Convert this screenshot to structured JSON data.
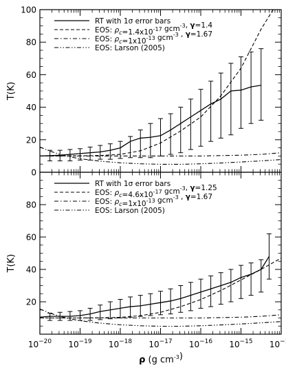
{
  "chart_data": [
    {
      "type": "line",
      "xscale": "log",
      "xlim": [
        1e-20,
        1e-14
      ],
      "ylim": [
        0,
        100
      ],
      "yticks": [
        0,
        20,
        40,
        60,
        80,
        100
      ],
      "ylabel": "T(K)",
      "legend_position": "top-left",
      "legend": [
        {
          "text": "RT with 1σ error bars",
          "style": "solid"
        },
        {
          "text": "EOS: ρc=1.4x10⁻¹⁷ gcm⁻³, γ=1.4",
          "style": "dashed"
        },
        {
          "text": "EOS: ρc=1x10⁻¹³ gcm⁻³ , γ=1.67",
          "style": "dashdot"
        },
        {
          "text": "EOS: Larson (2005)",
          "style": "dashdotdot"
        }
      ],
      "series": [
        {
          "name": "RT with 1σ error bars",
          "style": "solid",
          "log10_rho": [
            -20.0,
            -19.75,
            -19.5,
            -19.25,
            -19.0,
            -18.75,
            -18.5,
            -18.25,
            -18.0,
            -17.75,
            -17.5,
            -17.25,
            -17.0,
            -16.75,
            -16.5,
            -16.25,
            -16.0,
            -15.75,
            -15.5,
            -15.25,
            -15.0,
            -14.75,
            -14.5
          ],
          "T": [
            10,
            10.2,
            10.5,
            11,
            11.5,
            12,
            12.5,
            13.5,
            15,
            19,
            21,
            21.5,
            22.5,
            26,
            30,
            34,
            38,
            42,
            45,
            50,
            50.5,
            52.5,
            53.5
          ],
          "err_log10_rho": [
            -19.75,
            -19.5,
            -19.25,
            -19.0,
            -18.75,
            -18.5,
            -18.25,
            -18.0,
            -17.75,
            -17.5,
            -17.25,
            -17.0,
            -16.75,
            -16.5,
            -16.25,
            -16.0,
            -15.75,
            -15.5,
            -15.25,
            -15.0,
            -14.75,
            -14.5
          ],
          "err_lo": [
            7,
            7,
            7,
            7.5,
            7.5,
            8,
            8,
            8.5,
            9,
            9,
            9,
            10,
            11,
            12,
            14,
            16,
            19,
            21,
            23,
            27,
            30,
            32
          ],
          "err_hi": [
            13.5,
            13.5,
            14,
            14.5,
            15.5,
            16.5,
            17.5,
            19,
            22,
            26,
            30,
            33,
            36,
            40,
            45,
            51,
            56,
            61,
            67,
            71,
            74,
            76
          ]
        },
        {
          "name": "EOS: ρc=1.4x10⁻¹⁷ gcm⁻³, γ=1.4",
          "style": "dashed",
          "model": {
            "T0": 10,
            "rho_c": 1.4e-17,
            "gamma": 1.4
          },
          "log10_rho": [
            -20.0,
            -19.0,
            -18.5,
            -18.0,
            -17.5,
            -17.0,
            -16.5,
            -16.0,
            -15.5,
            -15.0,
            -14.5,
            -14.1
          ],
          "T": [
            10.0,
            10.1,
            10.3,
            11.0,
            13.2,
            18.0,
            25.4,
            34.0,
            47.0,
            64.0,
            88.0,
            104.0
          ]
        },
        {
          "name": "EOS: ρc=1x10⁻¹³ gcm⁻³ , γ=1.67",
          "style": "dashdot",
          "log10_rho": [
            -20.0,
            -19.0,
            -18.0,
            -17.0,
            -16.0,
            -15.0,
            -14.5,
            -14.0
          ],
          "T": [
            10.0,
            10.0,
            10.0,
            10.0,
            10.0,
            10.5,
            11.0,
            12.0
          ]
        },
        {
          "name": "EOS: Larson (2005)",
          "style": "dashdotdot",
          "log10_rho": [
            -20.0,
            -19.75,
            -19.5,
            -19.25,
            -19.0,
            -18.5,
            -18.0,
            -17.5,
            -17.0,
            -16.5,
            -16.0,
            -15.5,
            -15.0,
            -14.5,
            -14.0
          ],
          "T": [
            15.5,
            13.0,
            11.0,
            9.5,
            8.3,
            6.8,
            5.8,
            5.2,
            4.9,
            4.9,
            5.2,
            5.7,
            6.3,
            7.0,
            7.8
          ]
        }
      ]
    },
    {
      "type": "line",
      "xscale": "log",
      "xlim": [
        1e-20,
        1e-14
      ],
      "ylim": [
        0,
        100
      ],
      "xticks": [
        "10⁻²⁰",
        "10⁻¹⁹",
        "10⁻¹⁸",
        "10⁻¹⁷",
        "10⁻¹⁶",
        "10⁻¹⁵",
        "10⁻¹⁴"
      ],
      "yticks": [
        20,
        40,
        60,
        80
      ],
      "xlabel": "ρ (g cm⁻³)",
      "ylabel": "T(K)",
      "legend_position": "top-left",
      "legend": [
        {
          "text": "RT with 1σ error bars",
          "style": "solid"
        },
        {
          "text": "EOS: ρc=4.6x10⁻¹⁷ gcm⁻³, γ=1.25",
          "style": "dashed"
        },
        {
          "text": "EOS: ρc=1x10⁻¹³ gcm⁻³ , γ=1.67",
          "style": "dashdot"
        },
        {
          "text": "EOS: Larson (2005)",
          "style": "dashdotdot"
        }
      ],
      "series": [
        {
          "name": "RT with 1σ error bars",
          "style": "solid",
          "log10_rho": [
            -20.0,
            -19.75,
            -19.5,
            -19.25,
            -19.0,
            -18.75,
            -18.5,
            -18.25,
            -18.0,
            -17.75,
            -17.5,
            -17.25,
            -17.0,
            -16.75,
            -16.5,
            -16.25,
            -16.0,
            -15.75,
            -15.5,
            -15.25,
            -15.0,
            -14.75,
            -14.5,
            -14.3
          ],
          "T": [
            10.5,
            11,
            11,
            11,
            11.5,
            12.5,
            14,
            15,
            16,
            17,
            17.5,
            18.5,
            19.5,
            20.5,
            22,
            24,
            26,
            28,
            30,
            32,
            35,
            37,
            40,
            48
          ],
          "err_log10_rho": [
            -19.75,
            -19.5,
            -19.25,
            -19.0,
            -18.75,
            -18.5,
            -18.25,
            -18.0,
            -17.75,
            -17.5,
            -17.25,
            -17.0,
            -16.75,
            -16.5,
            -16.25,
            -16.0,
            -15.75,
            -15.5,
            -15.25,
            -15.0,
            -14.75,
            -14.5,
            -14.3
          ],
          "err_lo": [
            8.5,
            8.5,
            8.5,
            8.5,
            8.5,
            9,
            9.5,
            10,
            10.5,
            11,
            11.5,
            12,
            12.5,
            13.5,
            14.5,
            16,
            17,
            18.5,
            20,
            22,
            24,
            26,
            34
          ],
          "err_hi": [
            13,
            13.5,
            14,
            14.5,
            16,
            18,
            20,
            21.5,
            23,
            24,
            25,
            26.5,
            28,
            30,
            32,
            34,
            36,
            38,
            40,
            42.5,
            44,
            46,
            62
          ]
        },
        {
          "name": "EOS: ρc=4.6x10⁻¹⁷ gcm⁻³, γ=1.25",
          "style": "dashed",
          "model": {
            "T0": 10,
            "rho_c": 4.6e-17,
            "gamma": 1.25
          },
          "log10_rho": [
            -20.0,
            -19.0,
            -18.5,
            -18.0,
            -17.5,
            -17.0,
            -16.5,
            -16.0,
            -15.5,
            -15.0,
            -14.5,
            -14.0
          ],
          "T": [
            10.0,
            10.0,
            10.1,
            10.4,
            11.4,
            13.5,
            17.0,
            21.4,
            27.0,
            33.5,
            40.0,
            47.0
          ]
        },
        {
          "name": "EOS: ρc=1x10⁻¹³ gcm⁻³ , γ=1.67",
          "style": "dashdot",
          "log10_rho": [
            -20.0,
            -19.0,
            -18.0,
            -17.0,
            -16.0,
            -15.0,
            -14.5,
            -14.0
          ],
          "T": [
            10.0,
            10.0,
            10.0,
            10.0,
            10.0,
            10.5,
            11.0,
            12.0
          ]
        },
        {
          "name": "EOS: Larson (2005)",
          "style": "dashdotdot",
          "log10_rho": [
            -20.0,
            -19.75,
            -19.5,
            -19.25,
            -19.0,
            -18.5,
            -18.0,
            -17.5,
            -17.0,
            -16.5,
            -16.0,
            -15.5,
            -15.0,
            -14.5,
            -14.0
          ],
          "T": [
            15.5,
            13.0,
            11.0,
            9.5,
            8.3,
            6.8,
            5.8,
            5.2,
            4.9,
            4.9,
            5.2,
            5.7,
            6.3,
            7.0,
            7.8
          ]
        }
      ]
    }
  ]
}
